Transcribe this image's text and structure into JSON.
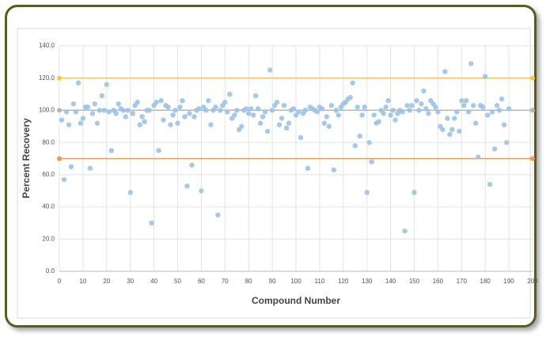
{
  "chart_data": {
    "type": "scatter",
    "x_label": "Compound Number",
    "y_label": "Percent Recovery",
    "xlim": [
      0,
      200
    ],
    "ylim": [
      0,
      140
    ],
    "xticks": [
      0,
      10,
      20,
      30,
      40,
      50,
      60,
      70,
      80,
      90,
      100,
      110,
      120,
      130,
      140,
      150,
      160,
      170,
      180,
      190,
      200
    ],
    "yticks": [
      {
        "value": 0,
        "label": "0.0"
      },
      {
        "value": 20,
        "label": "20.0"
      },
      {
        "value": 40,
        "label": "40.0"
      },
      {
        "value": 60,
        "label": "60.0"
      },
      {
        "value": 80,
        "label": "80.0"
      },
      {
        "value": 100,
        "label": "100.0"
      },
      {
        "value": 120,
        "label": "120.0"
      },
      {
        "value": 140,
        "label": "140.0"
      }
    ],
    "grid": true,
    "reference_lines": [
      {
        "value": 120,
        "color": "#f6c943"
      },
      {
        "value": 100,
        "color": "#b4b4b4"
      },
      {
        "value": 70,
        "color": "#f29a4a"
      }
    ],
    "color": "#9dc3e6",
    "x": [
      1,
      2,
      3,
      4,
      5,
      6,
      7,
      8,
      9,
      10,
      11,
      12,
      13,
      14,
      15,
      16,
      17,
      18,
      19,
      20,
      21,
      22,
      23,
      24,
      25,
      26,
      27,
      28,
      29,
      30,
      31,
      32,
      33,
      34,
      35,
      36,
      37,
      38,
      39,
      40,
      41,
      42,
      43,
      44,
      45,
      46,
      47,
      48,
      49,
      50,
      51,
      52,
      53,
      54,
      55,
      56,
      57,
      58,
      59,
      60,
      61,
      62,
      63,
      64,
      65,
      66,
      67,
      68,
      69,
      70,
      71,
      72,
      73,
      74,
      75,
      76,
      77,
      78,
      79,
      80,
      81,
      82,
      83,
      84,
      85,
      86,
      87,
      88,
      89,
      90,
      91,
      92,
      93,
      94,
      95,
      96,
      97,
      98,
      99,
      100,
      101,
      102,
      103,
      104,
      105,
      106,
      107,
      108,
      109,
      110,
      111,
      112,
      113,
      114,
      115,
      116,
      117,
      118,
      119,
      120,
      121,
      122,
      123,
      124,
      125,
      126,
      127,
      128,
      129,
      130,
      131,
      132,
      133,
      134,
      135,
      136,
      137,
      138,
      139,
      140,
      141,
      142,
      143,
      144,
      145,
      146,
      147,
      148,
      149,
      150,
      151,
      152,
      153,
      154,
      155,
      156,
      157,
      158,
      159,
      160,
      161,
      162,
      163,
      164,
      165,
      166,
      167,
      168,
      169,
      170,
      171,
      172,
      173,
      174,
      175,
      176,
      177,
      178,
      179,
      180,
      181,
      182,
      183,
      184,
      185,
      186,
      187,
      188,
      189,
      190
    ],
    "y": [
      94,
      57,
      99,
      91,
      65,
      104,
      99,
      117,
      92,
      95,
      102,
      102,
      64,
      98,
      104,
      92,
      100,
      109,
      100,
      116,
      99,
      75,
      100,
      98,
      104,
      101,
      100,
      96,
      100,
      49,
      98,
      103,
      105,
      91,
      96,
      93,
      100,
      100,
      30,
      103,
      105,
      75,
      106,
      94,
      103,
      102,
      91,
      97,
      100,
      92,
      102,
      106,
      96,
      53,
      98,
      66,
      96,
      100,
      101,
      50,
      102,
      100,
      106,
      91,
      100,
      102,
      35,
      100,
      103,
      105,
      99,
      110,
      95,
      97,
      100,
      88,
      90,
      100,
      101,
      98,
      101,
      97,
      109,
      101,
      92,
      96,
      99,
      87,
      125,
      100,
      103,
      105,
      91,
      95,
      103,
      89,
      92,
      100,
      101,
      97,
      99,
      83,
      98,
      100,
      64,
      102,
      101,
      100,
      99,
      102,
      101,
      92,
      96,
      90,
      103,
      63,
      100,
      97,
      102,
      104,
      105,
      107,
      108,
      117,
      78,
      102,
      84,
      97,
      102,
      49,
      80,
      68,
      97,
      92,
      93,
      100,
      98,
      102,
      106,
      97,
      100,
      94,
      98,
      100,
      99,
      25,
      103,
      100,
      103,
      49,
      106,
      100,
      104,
      112,
      101,
      98,
      106,
      104,
      102,
      99,
      90,
      88,
      124,
      95,
      85,
      88,
      95,
      99,
      87,
      106,
      103,
      106,
      99,
      129,
      103,
      92,
      71,
      103,
      102,
      121,
      97,
      54,
      99,
      76,
      103,
      100,
      107,
      91,
      80,
      101
    ]
  }
}
